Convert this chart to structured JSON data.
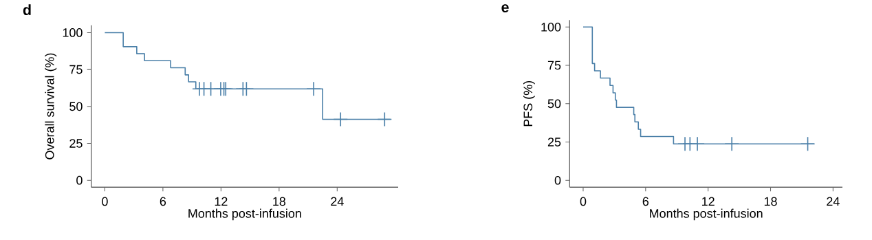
{
  "chart_data": [
    {
      "type": "step",
      "title": "d",
      "xlabel": "Months post-infusion",
      "ylabel": "Overall survival (%)",
      "xlim": [
        -1.4,
        30.3
      ],
      "ylim": [
        -4.7,
        105
      ],
      "xticks": [
        0,
        6,
        12,
        18,
        24
      ],
      "yticks": [
        0,
        25,
        50,
        75,
        100
      ],
      "series": [
        {
          "color": "#4a7fa8",
          "x": [
            0,
            1.9,
            3.3,
            4.1,
            6.8,
            8.3,
            8.65,
            9.4,
            22.5,
            29.5
          ],
          "values": [
            100,
            90.5,
            85.7,
            81,
            76.2,
            71.4,
            66.7,
            61.9,
            41.3,
            41.3
          ]
        },
        {
          "type": "scatter",
          "marker": "cross",
          "color": "#4a7fa8",
          "x": [
            9.77,
            10.24,
            10.95,
            11.97,
            12.3,
            12.49,
            14.27,
            14.63,
            21.57,
            24.35,
            28.9
          ],
          "values": [
            61.9,
            61.9,
            61.9,
            61.9,
            61.9,
            61.9,
            61.9,
            61.9,
            61.9,
            41.3,
            41.3
          ]
        }
      ]
    },
    {
      "type": "step",
      "title": "e",
      "xlabel": "Months post-infusion",
      "ylabel": "PFS (%)",
      "xlim": [
        -1.3,
        24.9
      ],
      "ylim": [
        -4.5,
        104.5
      ],
      "xticks": [
        0,
        6,
        12,
        18,
        24
      ],
      "yticks": [
        0,
        25,
        50,
        75,
        100
      ],
      "series": [
        {
          "color": "#4a7fa8",
          "x": [
            0,
            0.88,
            1.1,
            1.66,
            2.58,
            2.87,
            3.09,
            3.2,
            4.86,
            4.97,
            5.3,
            5.52,
            8.68,
            22.2
          ],
          "values": [
            100,
            76.2,
            71.4,
            66.7,
            61.9,
            57.1,
            52.4,
            47.6,
            42.9,
            38.1,
            33.3,
            28.6,
            23.8,
            23.8
          ]
        },
        {
          "type": "scatter",
          "marker": "cross",
          "color": "#4a7fa8",
          "x": [
            9.78,
            10.26,
            10.97,
            14.28,
            21.57
          ],
          "values": [
            23.8,
            23.8,
            23.8,
            23.8,
            23.8
          ]
        }
      ]
    }
  ]
}
